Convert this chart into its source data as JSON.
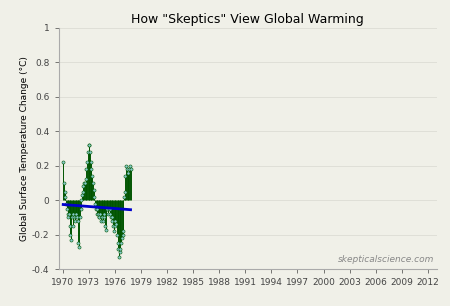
{
  "title": "How \"Skeptics\" View Global Warming",
  "ylabel": "Global Surface Temperature Change (°C)",
  "watermark": "skepticalscience.com",
  "xlim": [
    1969.5,
    2013.0
  ],
  "ylim": [
    -0.4,
    1.0
  ],
  "xticks": [
    1970,
    1973,
    1976,
    1979,
    1982,
    1985,
    1988,
    1991,
    1994,
    1997,
    2000,
    2003,
    2006,
    2009,
    2012
  ],
  "yticks": [
    -0.4,
    -0.2,
    0.0,
    0.2,
    0.4,
    0.6,
    0.8,
    1.0
  ],
  "data_color": "#005500",
  "marker_color": "#88CCCC",
  "trend_color": "#0000CC",
  "background_color": "#f0f0e8",
  "monthly_data": {
    "times": [
      1970.042,
      1970.125,
      1970.208,
      1970.292,
      1970.375,
      1970.458,
      1970.542,
      1970.625,
      1970.708,
      1970.792,
      1970.875,
      1970.958,
      1971.042,
      1971.125,
      1971.208,
      1971.292,
      1971.375,
      1971.458,
      1971.542,
      1971.625,
      1971.708,
      1971.792,
      1971.875,
      1971.958,
      1972.042,
      1972.125,
      1972.208,
      1972.292,
      1972.375,
      1972.458,
      1972.542,
      1972.625,
      1972.708,
      1972.792,
      1972.875,
      1972.958,
      1973.042,
      1973.125,
      1973.208,
      1973.292,
      1973.375,
      1973.458,
      1973.542,
      1973.625,
      1973.708,
      1973.792,
      1973.875,
      1973.958,
      1974.042,
      1974.125,
      1974.208,
      1974.292,
      1974.375,
      1974.458,
      1974.542,
      1974.625,
      1974.708,
      1974.792,
      1974.875,
      1974.958,
      1975.042,
      1975.125,
      1975.208,
      1975.292,
      1975.375,
      1975.458,
      1975.542,
      1975.625,
      1975.708,
      1975.792,
      1975.875,
      1975.958,
      1976.042,
      1976.125,
      1976.208,
      1976.292,
      1976.375,
      1976.458,
      1976.542,
      1976.625,
      1976.708,
      1976.792,
      1976.875,
      1976.958,
      1977.042,
      1977.125,
      1977.208,
      1977.292,
      1977.375,
      1977.458,
      1977.542,
      1977.625,
      1977.708,
      1977.792
    ],
    "values": [
      0.22,
      0.1,
      0.05,
      0.02,
      -0.02,
      -0.05,
      -0.08,
      -0.1,
      -0.08,
      -0.15,
      -0.2,
      -0.23,
      -0.1,
      -0.15,
      -0.08,
      -0.1,
      -0.12,
      -0.1,
      -0.08,
      -0.1,
      -0.12,
      -0.25,
      -0.27,
      -0.1,
      -0.05,
      0.0,
      0.03,
      0.05,
      0.08,
      0.1,
      0.1,
      0.12,
      0.18,
      0.22,
      0.28,
      0.32,
      0.32,
      0.28,
      0.22,
      0.18,
      0.14,
      0.1,
      0.06,
      0.02,
      -0.02,
      -0.05,
      -0.08,
      -0.05,
      -0.08,
      -0.1,
      -0.1,
      -0.08,
      -0.12,
      -0.1,
      -0.1,
      -0.12,
      -0.1,
      -0.08,
      -0.15,
      -0.17,
      -0.05,
      -0.05,
      -0.08,
      -0.05,
      -0.05,
      -0.08,
      -0.1,
      -0.12,
      -0.1,
      -0.15,
      -0.18,
      -0.15,
      -0.12,
      -0.14,
      -0.2,
      -0.25,
      -0.28,
      -0.33,
      -0.3,
      -0.28,
      -0.25,
      -0.22,
      -0.2,
      -0.18,
      0.02,
      0.05,
      0.14,
      0.2,
      0.18,
      0.16,
      0.16,
      0.18,
      0.2,
      0.18
    ]
  },
  "trend_x": [
    1970.042,
    1977.792
  ],
  "trend_y": [
    -0.025,
    -0.055
  ],
  "title_fontsize": 9,
  "label_fontsize": 6.5,
  "tick_fontsize": 6.5,
  "watermark_fontsize": 6.5
}
